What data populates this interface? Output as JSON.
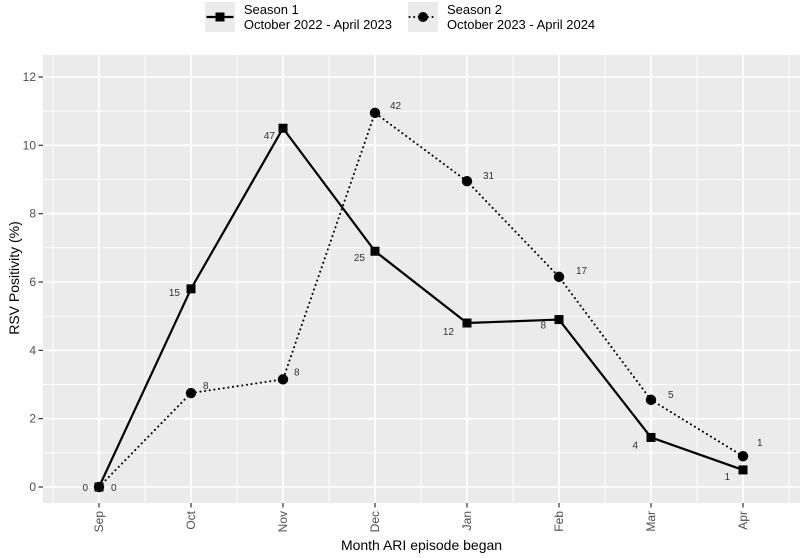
{
  "colors": {
    "panel_background": "#ebebeb",
    "gridline": "#ffffff",
    "series": "#000000",
    "tick_mark": "#333333",
    "axis_tick_text": "#4d4d4d",
    "point_label_text": "#333333",
    "axis_title_text": "#000000",
    "figure_background": "#ffffff"
  },
  "chart_data": {
    "type": "line",
    "title": "",
    "xlabel": "Month ARI episode began",
    "ylabel": "RSV Positivity (%)",
    "x": [
      "Sep",
      "Oct",
      "Nov",
      "Dec",
      "Jan",
      "Feb",
      "Mar",
      "Apr"
    ],
    "yticks": [
      0,
      2,
      4,
      6,
      8,
      10,
      12
    ],
    "ylim": [
      -0.5,
      12.65
    ],
    "grid": true,
    "legend_position": "top-center",
    "series": [
      {
        "name": "Season 1",
        "period": "October 2022 - April 2023",
        "line": "solid",
        "marker": "square",
        "values": [
          0,
          5.8,
          10.5,
          6.9,
          4.8,
          4.9,
          1.45,
          0.5
        ],
        "point_labels": [
          "0",
          "15",
          "47",
          "25",
          "12",
          "8",
          "4",
          "1"
        ],
        "label_anchor": "end",
        "label_offsets": [
          [
            -11,
            4
          ],
          [
            -11,
            7
          ],
          [
            -8,
            11
          ],
          [
            -10,
            10
          ],
          [
            -13,
            12
          ],
          [
            -13,
            9
          ],
          [
            -13,
            11
          ],
          [
            -13,
            10
          ]
        ]
      },
      {
        "name": "Season 2",
        "period": "October 2023 - April 2024",
        "line": "dotted",
        "marker": "circle",
        "values": [
          0,
          2.75,
          3.15,
          10.95,
          8.95,
          6.15,
          2.55,
          0.9
        ],
        "point_labels": [
          "0",
          "8",
          "8",
          "42",
          "31",
          "17",
          "5",
          "1"
        ],
        "label_anchor": "start",
        "label_offsets": [
          [
            12,
            4
          ],
          [
            12,
            -4
          ],
          [
            11,
            -4
          ],
          [
            15,
            -4
          ],
          [
            16,
            -2
          ],
          [
            17,
            -3
          ],
          [
            17,
            -2
          ],
          [
            14,
            -10
          ]
        ]
      }
    ]
  }
}
